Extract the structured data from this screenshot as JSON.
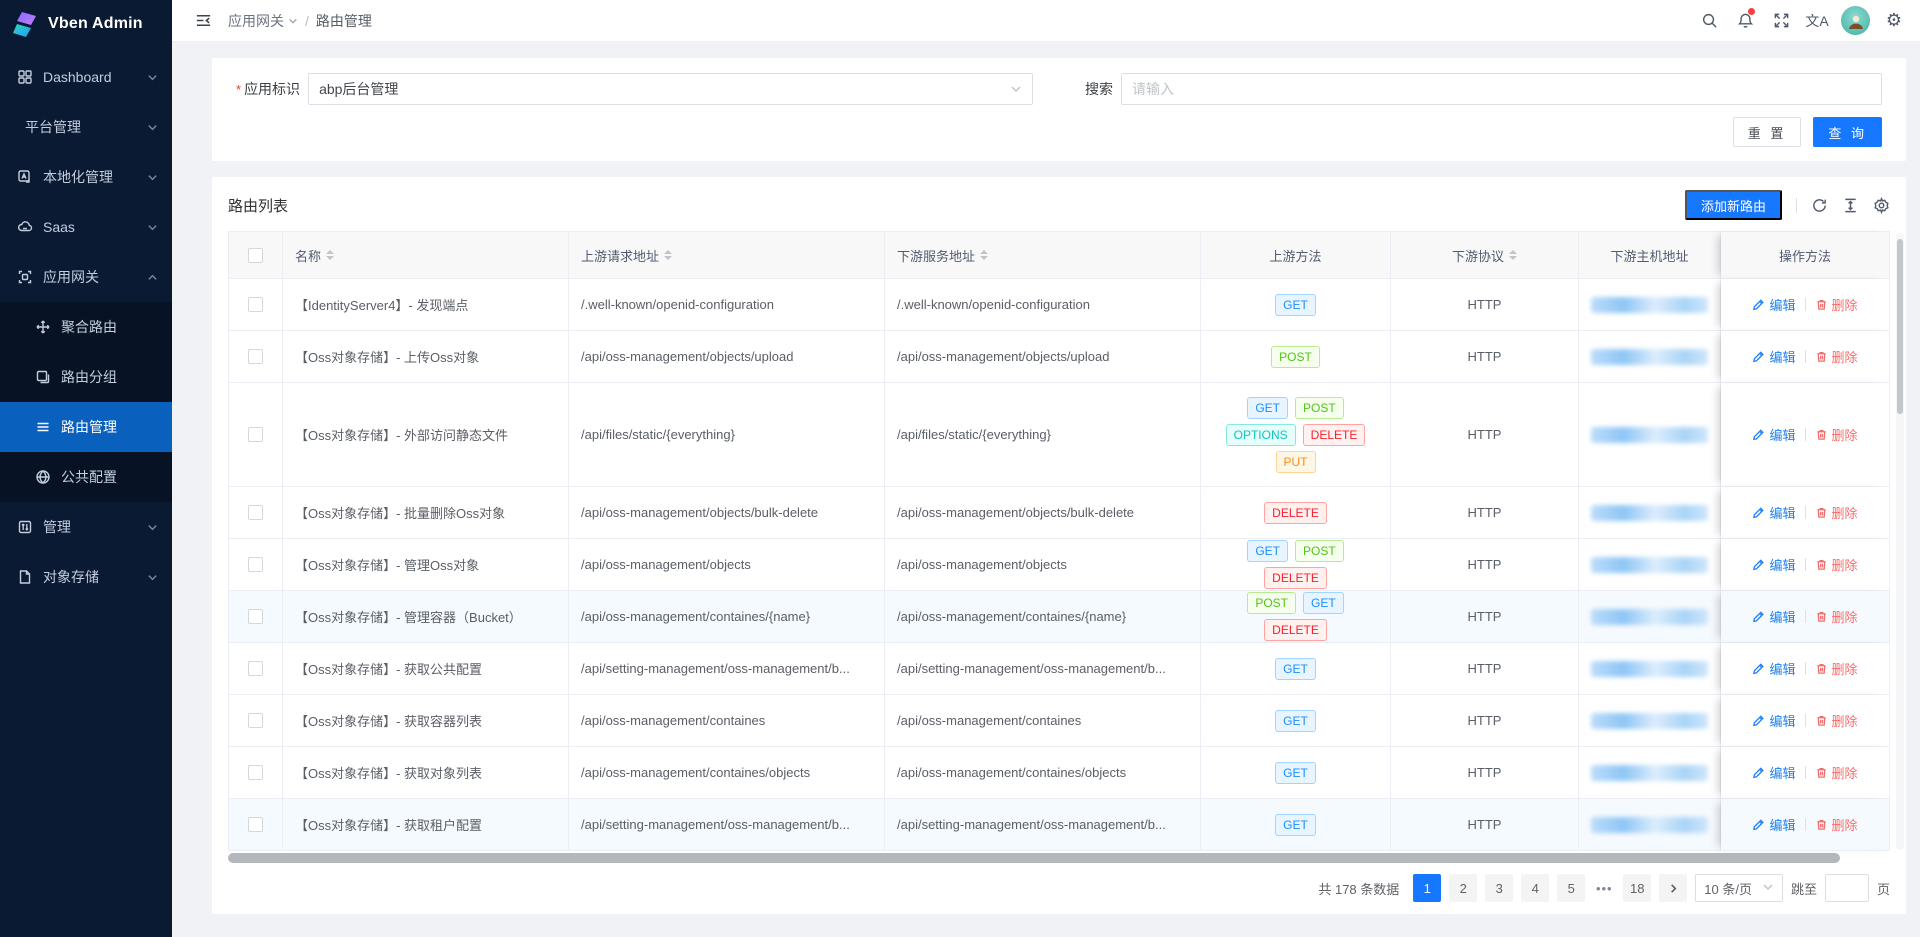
{
  "colors": {
    "primary": "#1677ff",
    "sidebar_bg": "#0b1a33",
    "menu_active": "#0960bd",
    "danger": "#f5413d"
  },
  "app": {
    "brand": "Vben Admin"
  },
  "header": {
    "breadcrumb_primary": "应用网关",
    "breadcrumb_separator": "/",
    "breadcrumb_current": "路由管理",
    "icons": [
      "search-icon",
      "bell-icon",
      "fullscreen-icon",
      "translate-icon",
      "avatar",
      "settings-icon"
    ]
  },
  "sidebar": {
    "items": [
      {
        "id": "dashboard",
        "label": "Dashboard",
        "icon": "dashboard-icon",
        "chevron": "down"
      },
      {
        "id": "platform-management",
        "label": "平台管理",
        "icon": null,
        "chevron": "down"
      },
      {
        "id": "localization-management",
        "label": "本地化管理",
        "icon": "localization-icon",
        "chevron": "down"
      },
      {
        "id": "saas",
        "label": "Saas",
        "icon": "saas-icon",
        "chevron": "down"
      },
      {
        "id": "app-gateway",
        "label": "应用网关",
        "icon": "gateway-icon",
        "chevron": "up",
        "expanded": true,
        "children": [
          {
            "id": "aggregate-route",
            "label": "聚合路由",
            "icon": "aggregate-route-icon"
          },
          {
            "id": "route-group",
            "label": "路由分组",
            "icon": "route-group-icon"
          },
          {
            "id": "route-management",
            "label": "路由管理",
            "icon": "route-management-icon",
            "active": true
          },
          {
            "id": "public-config",
            "label": "公共配置",
            "icon": "globe-icon"
          }
        ]
      },
      {
        "id": "management",
        "label": "管理",
        "icon": "management-icon",
        "chevron": "down"
      },
      {
        "id": "object-storage",
        "label": "对象存储",
        "icon": "storage-icon",
        "chevron": "down"
      }
    ]
  },
  "filter": {
    "required_mark": "*",
    "app_label": "应用标识",
    "app_value": "abp后台管理",
    "search_label": "搜索",
    "search_placeholder": "请输入",
    "reset_label": "重 置",
    "query_label": "查 询"
  },
  "table": {
    "title": "路由列表",
    "add_button": "添加新路由",
    "toolbar_icons": [
      "refresh-icon",
      "row-height-icon",
      "column-settings-icon"
    ],
    "columns": [
      {
        "key": "name",
        "label": "名称",
        "sortable": true,
        "cls": "c1"
      },
      {
        "key": "upstream",
        "label": "上游请求地址",
        "sortable": true,
        "cls": "c2"
      },
      {
        "key": "downstream",
        "label": "下游服务地址",
        "sortable": true,
        "cls": "c3"
      },
      {
        "key": "methods",
        "label": "上游方法",
        "sortable": false,
        "cls": "c4"
      },
      {
        "key": "protocol",
        "label": "下游协议",
        "sortable": true,
        "cls": "c5"
      },
      {
        "key": "host",
        "label": "下游主机地址",
        "sortable": false,
        "cls": "c6"
      },
      {
        "key": "actions",
        "label": "操作方法",
        "sortable": false,
        "cls": "c7"
      }
    ],
    "edit_label": "编辑",
    "delete_label": "删除",
    "method_colors": {
      "GET": {
        "text": "#1890ff",
        "bg": "#e8f4ff",
        "border": "#a3d3ff"
      },
      "POST": {
        "text": "#52c41a",
        "bg": "#f6ffed",
        "border": "#b7eb8f"
      },
      "OPTIONS": {
        "text": "#13c2c2",
        "bg": "#e6fffb",
        "border": "#87e8de"
      },
      "DELETE": {
        "text": "#f5222d",
        "bg": "#fff1f0",
        "border": "#ffa39e"
      },
      "PUT": {
        "text": "#fa8c16",
        "bg": "#fff7e6",
        "border": "#ffd591"
      }
    },
    "rows": [
      {
        "name": "【IdentityServer4】- 发现端点",
        "upstream": "/.well-known/openid-configuration",
        "downstream": "/.well-known/openid-configuration",
        "methods": [
          "GET"
        ],
        "protocol": "HTTP"
      },
      {
        "name": "【Oss对象存储】- 上传Oss对象",
        "upstream": "/api/oss-management/objects/upload",
        "downstream": "/api/oss-management/objects/upload",
        "methods": [
          "POST"
        ],
        "protocol": "HTTP"
      },
      {
        "name": "【Oss对象存储】- 外部访问静态文件",
        "upstream": "/api/files/static/{everything}",
        "downstream": "/api/files/static/{everything}",
        "methods": [
          "GET",
          "POST",
          "OPTIONS",
          "DELETE",
          "PUT"
        ],
        "protocol": "HTTP",
        "tall": true
      },
      {
        "name": "【Oss对象存储】- 批量删除Oss对象",
        "upstream": "/api/oss-management/objects/bulk-delete",
        "downstream": "/api/oss-management/objects/bulk-delete",
        "methods": [
          "DELETE"
        ],
        "protocol": "HTTP"
      },
      {
        "name": "【Oss对象存储】- 管理Oss对象",
        "upstream": "/api/oss-management/objects",
        "downstream": "/api/oss-management/objects",
        "methods": [
          "GET",
          "POST",
          "DELETE"
        ],
        "protocol": "HTTP"
      },
      {
        "name": "【Oss对象存储】- 管理容器（Bucket）",
        "upstream": "/api/oss-management/containes/{name}",
        "downstream": "/api/oss-management/containes/{name}",
        "methods": [
          "POST",
          "GET",
          "DELETE"
        ],
        "protocol": "HTTP",
        "tinted": true
      },
      {
        "name": "【Oss对象存储】- 获取公共配置",
        "upstream": "/api/setting-management/oss-management/b...",
        "downstream": "/api/setting-management/oss-management/b...",
        "methods": [
          "GET"
        ],
        "protocol": "HTTP"
      },
      {
        "name": "【Oss对象存储】- 获取容器列表",
        "upstream": "/api/oss-management/containes",
        "downstream": "/api/oss-management/containes",
        "methods": [
          "GET"
        ],
        "protocol": "HTTP"
      },
      {
        "name": "【Oss对象存储】- 获取对象列表",
        "upstream": "/api/oss-management/containes/objects",
        "downstream": "/api/oss-management/containes/objects",
        "methods": [
          "GET"
        ],
        "protocol": "HTTP"
      },
      {
        "name": "【Oss对象存储】- 获取租户配置",
        "upstream": "/api/setting-management/oss-management/b...",
        "downstream": "/api/setting-management/oss-management/b...",
        "methods": [
          "GET"
        ],
        "protocol": "HTTP",
        "tinted": true
      }
    ]
  },
  "pagination": {
    "total_text": "共 178 条数据",
    "pages": [
      "1",
      "2",
      "3",
      "4",
      "5",
      "•••",
      "18"
    ],
    "active_page": "1",
    "page_size": "10 条/页",
    "jump_prefix": "跳至",
    "jump_suffix": "页"
  }
}
